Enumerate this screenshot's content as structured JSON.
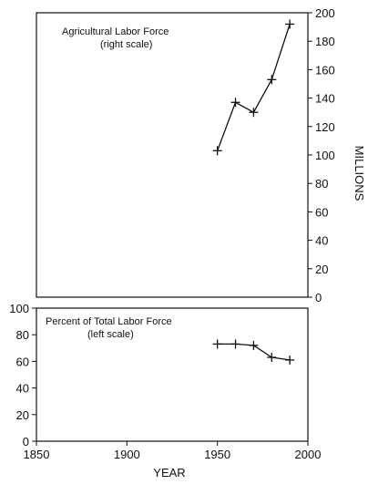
{
  "chart_data": [
    {
      "type": "line",
      "title": "Agricultural Labor Force",
      "subtitle": "(right scale)",
      "ylabel": "MILLIONS",
      "xlim": [
        1850,
        2000
      ],
      "ylim": [
        0,
        200
      ],
      "y_ticks": [
        0,
        20,
        40,
        60,
        80,
        100,
        120,
        140,
        160,
        180,
        200
      ],
      "grid": false,
      "series": [
        {
          "name": "Agricultural Labor Force",
          "x": [
            1950,
            1960,
            1970,
            1980,
            1990
          ],
          "y": [
            103,
            137,
            130,
            153,
            192
          ]
        }
      ]
    },
    {
      "type": "line",
      "title": "Percent of Total Labor Force",
      "subtitle": "(left scale)",
      "xlabel": "YEAR",
      "xlim": [
        1850,
        2000
      ],
      "ylim": [
        0,
        100
      ],
      "x_ticks": [
        1850,
        1900,
        1950,
        2000
      ],
      "y_ticks": [
        0,
        20,
        40,
        60,
        80,
        100
      ],
      "grid": false,
      "series": [
        {
          "name": "Percent of Total Labor Force",
          "x": [
            1950,
            1960,
            1970,
            1980,
            1990
          ],
          "y": [
            73,
            73,
            72,
            63,
            61
          ]
        }
      ]
    }
  ]
}
